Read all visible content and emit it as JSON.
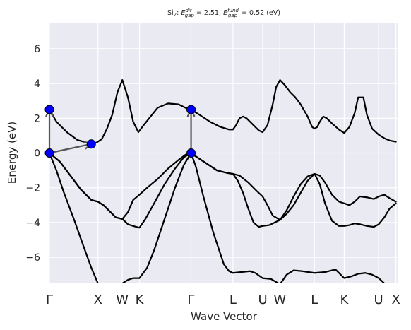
{
  "chart_data": {
    "type": "line",
    "title": {
      "material": "Si",
      "material_sub": "2",
      "sep": ": ",
      "dir_sym": "E",
      "dir_sup": "dir",
      "dir_sub": "gap",
      "dir_eq": " = 2.51, ",
      "fund_sym": "E",
      "fund_sup": "fund",
      "fund_sub": "gap",
      "fund_eq": " = 0.52 (eV)"
    },
    "xlabel": "Wave Vector",
    "ylabel": "Energy (eV)",
    "ylim": [
      -7.5,
      7.5
    ],
    "yticks": [
      {
        "value": 6,
        "label": "6"
      },
      {
        "value": 4,
        "label": "4"
      },
      {
        "value": 2,
        "label": "2"
      },
      {
        "value": 0,
        "label": "0"
      },
      {
        "value": -2,
        "label": "−2"
      },
      {
        "value": -4,
        "label": "−4"
      },
      {
        "value": -6,
        "label": "−6"
      }
    ],
    "xlim": [
      0,
      1
    ],
    "xticks": [
      {
        "x": 0.0,
        "label": "Γ"
      },
      {
        "x": 0.1392,
        "label": "X"
      },
      {
        "x": 0.2088,
        "label": "W"
      },
      {
        "x": 0.2582,
        "label": "K"
      },
      {
        "x": 0.4057,
        "label": "Γ"
      },
      {
        "x": 0.5262,
        "label": "L"
      },
      {
        "x": 0.6114,
        "label": "U"
      },
      {
        "x": 0.6606,
        "label": "W"
      },
      {
        "x": 0.7596,
        "label": "L"
      },
      {
        "x": 0.845,
        "label": "K"
      },
      {
        "x": 0.9436,
        "label": "U"
      },
      {
        "x": 0.9932,
        "label": "X"
      }
    ],
    "grid": true,
    "line_color": "#000000",
    "background": "#EAEAF2",
    "marker_color": "#0000FF",
    "arrow_color": "#555555",
    "series": [
      {
        "points": [
          [
            0.0,
            2.5
          ],
          [
            0.02,
            1.8
          ],
          [
            0.05,
            1.2
          ],
          [
            0.08,
            0.75
          ],
          [
            0.11,
            0.58
          ],
          [
            0.12,
            0.52
          ],
          [
            0.135,
            0.6
          ],
          [
            0.15,
            0.8
          ],
          [
            0.165,
            1.4
          ],
          [
            0.18,
            2.2
          ],
          [
            0.195,
            3.5
          ],
          [
            0.209,
            4.2
          ],
          [
            0.225,
            3.2
          ],
          [
            0.24,
            1.8
          ],
          [
            0.255,
            1.2
          ],
          [
            0.27,
            1.6
          ],
          [
            0.29,
            2.1
          ],
          [
            0.31,
            2.6
          ],
          [
            0.34,
            2.85
          ],
          [
            0.37,
            2.8
          ],
          [
            0.39,
            2.6
          ],
          [
            0.406,
            2.5
          ],
          [
            0.43,
            2.2
          ],
          [
            0.46,
            1.8
          ],
          [
            0.49,
            1.5
          ],
          [
            0.515,
            1.35
          ],
          [
            0.526,
            1.35
          ],
          [
            0.535,
            1.6
          ],
          [
            0.545,
            2.0
          ],
          [
            0.555,
            2.1
          ],
          [
            0.565,
            2.0
          ],
          [
            0.58,
            1.7
          ],
          [
            0.6,
            1.3
          ],
          [
            0.611,
            1.2
          ],
          [
            0.625,
            1.6
          ],
          [
            0.64,
            2.8
          ],
          [
            0.65,
            3.8
          ],
          [
            0.661,
            4.2
          ],
          [
            0.675,
            3.9
          ],
          [
            0.69,
            3.5
          ],
          [
            0.705,
            3.2
          ],
          [
            0.72,
            2.8
          ],
          [
            0.74,
            2.1
          ],
          [
            0.753,
            1.5
          ],
          [
            0.76,
            1.4
          ],
          [
            0.768,
            1.5
          ],
          [
            0.775,
            1.8
          ],
          [
            0.785,
            2.1
          ],
          [
            0.795,
            2.0
          ],
          [
            0.81,
            1.7
          ],
          [
            0.83,
            1.35
          ],
          [
            0.845,
            1.15
          ],
          [
            0.86,
            1.5
          ],
          [
            0.875,
            2.3
          ],
          [
            0.885,
            3.2
          ],
          [
            0.9,
            3.2
          ],
          [
            0.91,
            2.2
          ],
          [
            0.925,
            1.4
          ],
          [
            0.944,
            1.05
          ],
          [
            0.96,
            0.85
          ],
          [
            0.975,
            0.72
          ],
          [
            0.993,
            0.65
          ]
        ]
      },
      {
        "points": [
          [
            0.0,
            0.0
          ],
          [
            0.03,
            -0.5
          ],
          [
            0.06,
            -1.3
          ],
          [
            0.09,
            -2.1
          ],
          [
            0.12,
            -2.7
          ],
          [
            0.139,
            -2.8
          ],
          [
            0.155,
            -3.0
          ],
          [
            0.17,
            -3.3
          ],
          [
            0.19,
            -3.7
          ],
          [
            0.209,
            -3.8
          ],
          [
            0.225,
            -3.4
          ],
          [
            0.24,
            -2.7
          ],
          [
            0.258,
            -2.4
          ],
          [
            0.28,
            -2.0
          ],
          [
            0.31,
            -1.5
          ],
          [
            0.34,
            -0.9
          ],
          [
            0.37,
            -0.4
          ],
          [
            0.39,
            -0.1
          ],
          [
            0.406,
            0.0
          ],
          [
            0.42,
            -0.2
          ],
          [
            0.45,
            -0.6
          ],
          [
            0.48,
            -1.0
          ],
          [
            0.51,
            -1.15
          ],
          [
            0.526,
            -1.2
          ],
          [
            0.545,
            -1.3
          ],
          [
            0.57,
            -1.7
          ],
          [
            0.595,
            -2.2
          ],
          [
            0.611,
            -2.5
          ],
          [
            0.625,
            -3.0
          ],
          [
            0.64,
            -3.6
          ],
          [
            0.661,
            -3.85
          ],
          [
            0.68,
            -3.3
          ],
          [
            0.7,
            -2.5
          ],
          [
            0.72,
            -1.8
          ],
          [
            0.74,
            -1.35
          ],
          [
            0.76,
            -1.2
          ],
          [
            0.775,
            -1.3
          ],
          [
            0.79,
            -1.7
          ],
          [
            0.81,
            -2.4
          ],
          [
            0.83,
            -2.8
          ],
          [
            0.845,
            -2.9
          ],
          [
            0.86,
            -3.0
          ],
          [
            0.875,
            -2.8
          ],
          [
            0.89,
            -2.5
          ],
          [
            0.91,
            -2.55
          ],
          [
            0.93,
            -2.65
          ],
          [
            0.944,
            -2.5
          ],
          [
            0.96,
            -2.4
          ],
          [
            0.975,
            -2.6
          ],
          [
            0.993,
            -2.8
          ]
        ]
      },
      {
        "points": [
          [
            0.0,
            0.0
          ],
          [
            0.03,
            -0.5
          ],
          [
            0.06,
            -1.3
          ],
          [
            0.09,
            -2.1
          ],
          [
            0.12,
            -2.7
          ],
          [
            0.139,
            -2.8
          ],
          [
            0.155,
            -3.0
          ],
          [
            0.17,
            -3.3
          ],
          [
            0.19,
            -3.7
          ],
          [
            0.209,
            -3.8
          ],
          [
            0.225,
            -4.1
          ],
          [
            0.24,
            -4.2
          ],
          [
            0.258,
            -4.3
          ],
          [
            0.275,
            -3.8
          ],
          [
            0.3,
            -2.9
          ],
          [
            0.33,
            -1.8
          ],
          [
            0.36,
            -0.9
          ],
          [
            0.385,
            -0.25
          ],
          [
            0.406,
            0.0
          ],
          [
            0.42,
            -0.2
          ],
          [
            0.45,
            -0.6
          ],
          [
            0.48,
            -1.0
          ],
          [
            0.51,
            -1.15
          ],
          [
            0.526,
            -1.2
          ],
          [
            0.54,
            -1.6
          ],
          [
            0.555,
            -2.3
          ],
          [
            0.57,
            -3.2
          ],
          [
            0.585,
            -4.0
          ],
          [
            0.6,
            -4.25
          ],
          [
            0.611,
            -4.2
          ],
          [
            0.63,
            -4.15
          ],
          [
            0.661,
            -3.85
          ],
          [
            0.68,
            -3.5
          ],
          [
            0.7,
            -3.0
          ],
          [
            0.72,
            -2.3
          ],
          [
            0.74,
            -1.6
          ],
          [
            0.76,
            -1.2
          ],
          [
            0.775,
            -1.8
          ],
          [
            0.79,
            -2.9
          ],
          [
            0.81,
            -3.9
          ],
          [
            0.83,
            -4.2
          ],
          [
            0.845,
            -4.2
          ],
          [
            0.86,
            -4.15
          ],
          [
            0.875,
            -4.05
          ],
          [
            0.89,
            -4.1
          ],
          [
            0.91,
            -4.2
          ],
          [
            0.93,
            -4.25
          ],
          [
            0.944,
            -4.1
          ],
          [
            0.96,
            -3.7
          ],
          [
            0.975,
            -3.2
          ],
          [
            0.993,
            -2.9
          ]
        ]
      },
      {
        "points": [
          [
            0.0,
            0.0
          ],
          [
            0.02,
            -1.0
          ],
          [
            0.04,
            -2.2
          ],
          [
            0.07,
            -3.8
          ],
          [
            0.1,
            -5.5
          ],
          [
            0.12,
            -6.6
          ],
          [
            0.139,
            -7.5
          ]
        ]
      },
      {
        "points": [
          [
            0.209,
            -7.5
          ],
          [
            0.225,
            -7.3
          ],
          [
            0.24,
            -7.2
          ],
          [
            0.258,
            -7.2
          ],
          [
            0.28,
            -6.6
          ],
          [
            0.3,
            -5.6
          ],
          [
            0.33,
            -3.8
          ],
          [
            0.36,
            -2.0
          ],
          [
            0.385,
            -0.7
          ],
          [
            0.406,
            0.0
          ],
          [
            0.42,
            -0.8
          ],
          [
            0.44,
            -2.4
          ],
          [
            0.47,
            -4.6
          ],
          [
            0.5,
            -6.4
          ],
          [
            0.515,
            -6.8
          ],
          [
            0.526,
            -6.9
          ],
          [
            0.55,
            -6.85
          ],
          [
            0.575,
            -6.8
          ],
          [
            0.59,
            -6.9
          ],
          [
            0.611,
            -7.2
          ],
          [
            0.635,
            -7.25
          ],
          [
            0.661,
            -7.55
          ],
          [
            0.68,
            -7.0
          ],
          [
            0.7,
            -6.75
          ],
          [
            0.725,
            -6.8
          ],
          [
            0.76,
            -6.9
          ],
          [
            0.79,
            -6.85
          ],
          [
            0.82,
            -6.7
          ],
          [
            0.845,
            -7.2
          ],
          [
            0.865,
            -7.1
          ],
          [
            0.885,
            -6.95
          ],
          [
            0.905,
            -6.9
          ],
          [
            0.925,
            -7.0
          ],
          [
            0.944,
            -7.2
          ],
          [
            0.96,
            -7.5
          ]
        ]
      }
    ],
    "markers": [
      {
        "x": 0.0,
        "y": 2.5
      },
      {
        "x": 0.0,
        "y": 0.0
      },
      {
        "x": 0.12,
        "y": 0.52
      },
      {
        "x": 0.406,
        "y": 2.5
      },
      {
        "x": 0.406,
        "y": 0.0
      }
    ],
    "arrows": [
      {
        "from": [
          0.0,
          0.0
        ],
        "to": [
          0.0,
          2.5
        ]
      },
      {
        "from": [
          0.0,
          0.0
        ],
        "to": [
          0.12,
          0.52
        ]
      },
      {
        "from": [
          0.406,
          0.0
        ],
        "to": [
          0.406,
          2.5
        ]
      }
    ]
  }
}
